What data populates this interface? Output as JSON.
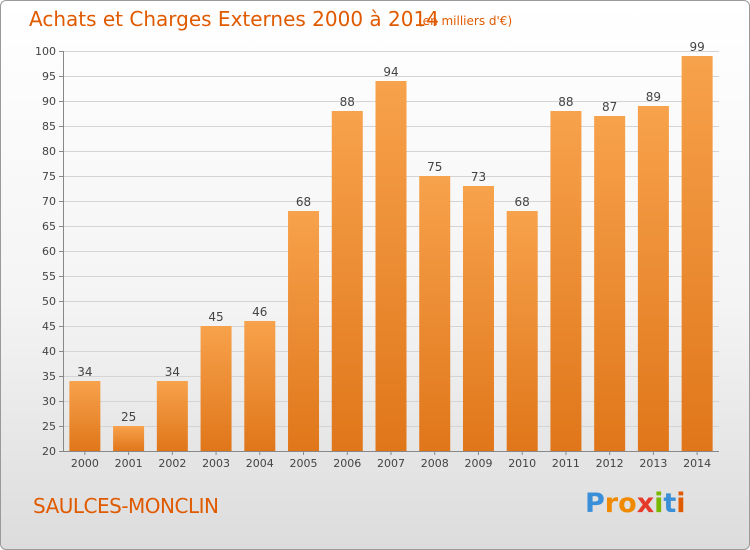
{
  "header": {
    "title": "Achats et Charges Externes 2000 à 2014",
    "unit": "(en milliers d'€)"
  },
  "footer": {
    "commune": "SAULCES-MONCLIN",
    "logo_text": "Proxiti",
    "logo_letters": [
      {
        "char": "P",
        "color": "#3a8fd8"
      },
      {
        "char": "r",
        "color": "#f08a00"
      },
      {
        "char": "o",
        "color": "#f08a00"
      },
      {
        "char": "x",
        "color": "#e63a2a"
      },
      {
        "char": "i",
        "color": "#7ab800"
      },
      {
        "char": "t",
        "color": "#3a8fd8"
      },
      {
        "char": "i",
        "color": "#e05a00"
      }
    ]
  },
  "chart_data": {
    "type": "bar",
    "categories": [
      "2000",
      "2001",
      "2002",
      "2003",
      "2004",
      "2005",
      "2006",
      "2007",
      "2008",
      "2009",
      "2010",
      "2011",
      "2012",
      "2013",
      "2014"
    ],
    "values": [
      34,
      25,
      34,
      45,
      46,
      68,
      88,
      94,
      75,
      73,
      68,
      88,
      87,
      89,
      99
    ],
    "ylim": [
      20,
      100
    ],
    "yticks": [
      20,
      25,
      30,
      35,
      40,
      45,
      50,
      55,
      60,
      65,
      70,
      75,
      80,
      85,
      90,
      95,
      100
    ],
    "grid": true,
    "bar_color": "#f08a30",
    "text_color": "#e05a00"
  }
}
